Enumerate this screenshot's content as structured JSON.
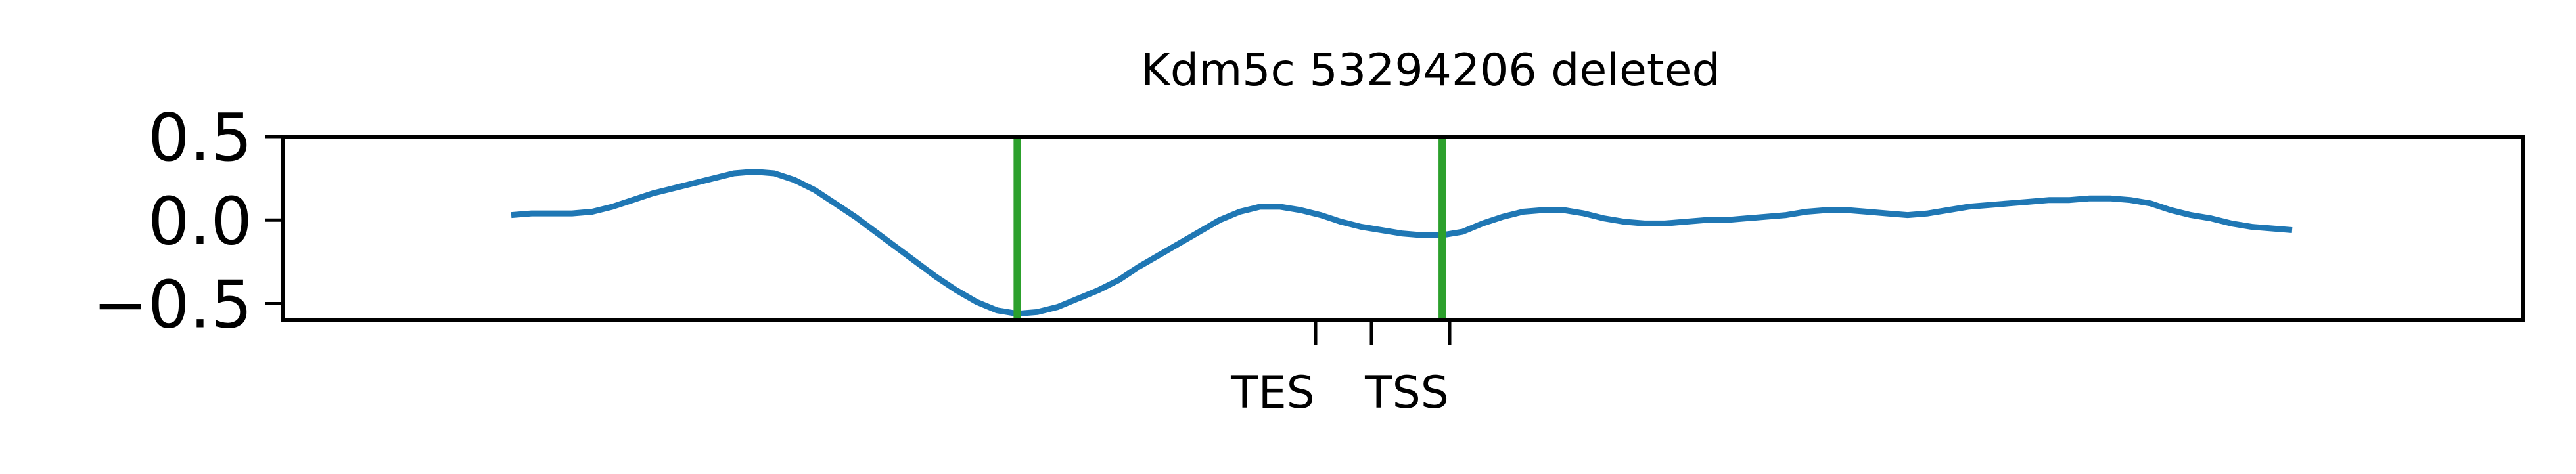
{
  "chart_data": {
    "type": "line",
    "title": "Kdm5c 53294206 deleted",
    "xlabel": "",
    "ylabel": "",
    "ylim": [
      -0.6,
      0.5
    ],
    "yticks": [
      {
        "value": 0.5,
        "label": "0.5"
      },
      {
        "value": 0.0,
        "label": "0.0"
      },
      {
        "value": -0.5,
        "label": "−0.5"
      }
    ],
    "xticks": [
      {
        "label": "TES",
        "tick_id": "xtick-tes"
      },
      {
        "label": "",
        "tick_id": "xtick-unlabeled"
      },
      {
        "label": "TSS",
        "tick_id": "xtick-tss"
      }
    ],
    "grid": false,
    "legend": "none",
    "line_color": "#1f77b4",
    "marker_color": "#2ca02c",
    "series": [
      {
        "values": [
          0.03,
          0.04,
          0.04,
          0.04,
          0.05,
          0.08,
          0.12,
          0.16,
          0.19,
          0.22,
          0.25,
          0.28,
          0.29,
          0.28,
          0.24,
          0.18,
          0.1,
          0.02,
          -0.07,
          -0.16,
          -0.25,
          -0.34,
          -0.42,
          -0.49,
          -0.54,
          -0.56,
          -0.55,
          -0.52,
          -0.47,
          -0.42,
          -0.36,
          -0.28,
          -0.21,
          -0.14,
          -0.07,
          0.0,
          0.05,
          0.08,
          0.08,
          0.06,
          0.03,
          -0.01,
          -0.04,
          -0.06,
          -0.08,
          -0.09,
          -0.09,
          -0.07,
          -0.02,
          0.02,
          0.05,
          0.06,
          0.06,
          0.04,
          0.01,
          -0.01,
          -0.02,
          -0.02,
          -0.01,
          0.0,
          0.0,
          0.01,
          0.02,
          0.03,
          0.05,
          0.06,
          0.06,
          0.05,
          0.04,
          0.03,
          0.04,
          0.06,
          0.08,
          0.09,
          0.1,
          0.11,
          0.12,
          0.12,
          0.13,
          0.13,
          0.12,
          0.1,
          0.06,
          0.03,
          0.01,
          -0.02,
          -0.04,
          -0.05,
          -0.06
        ]
      }
    ],
    "markers": [
      {
        "index": 25,
        "name": "marker-line-left"
      },
      {
        "index": 46,
        "name": "marker-line-tss"
      }
    ]
  }
}
